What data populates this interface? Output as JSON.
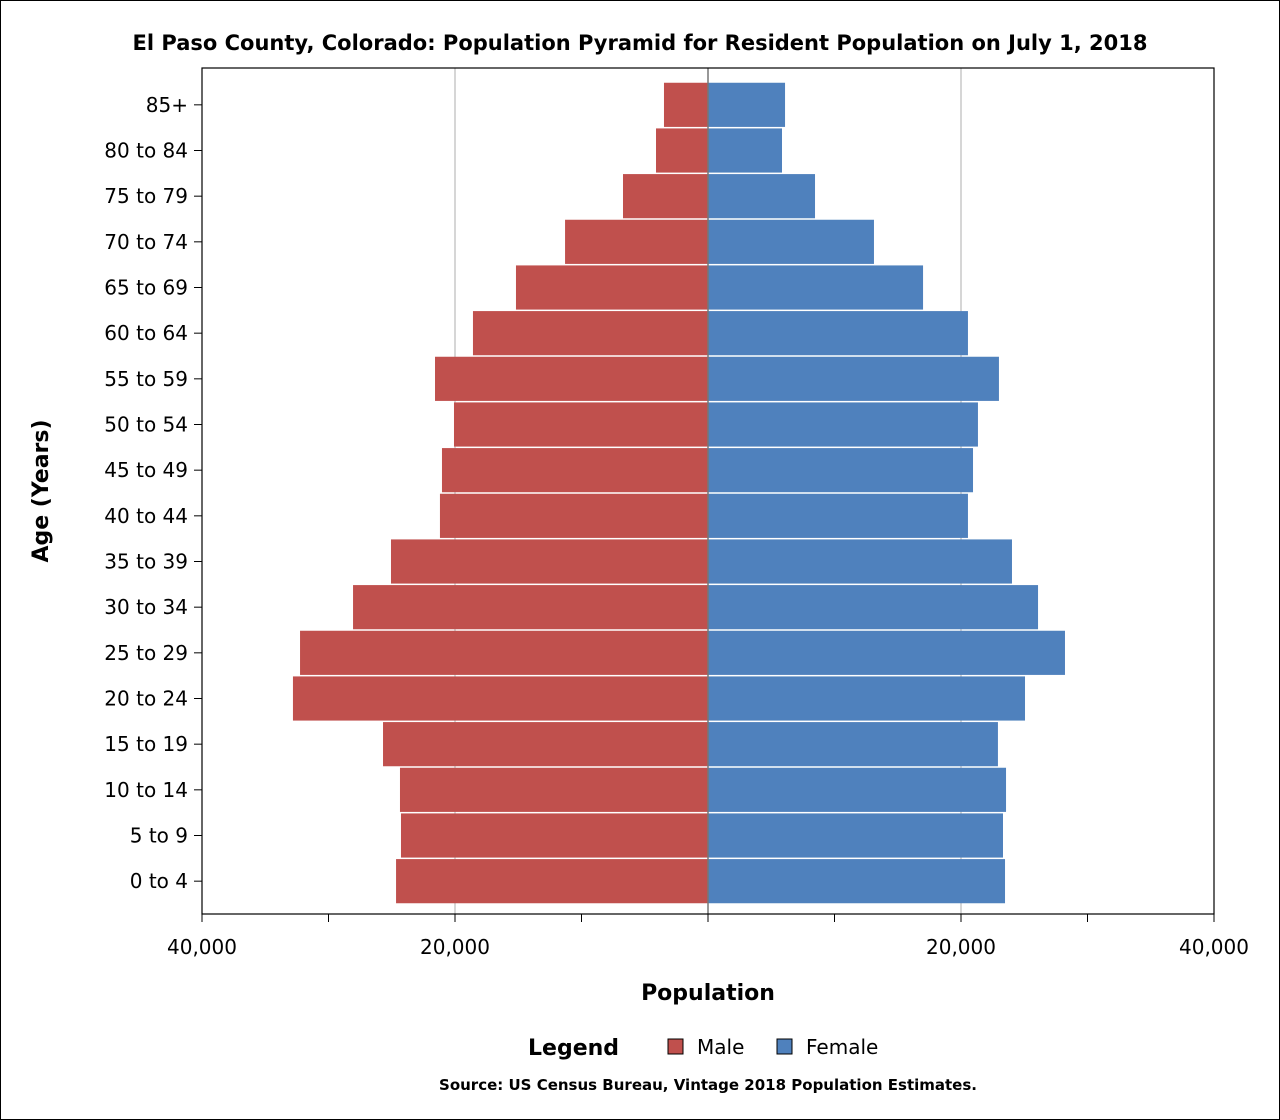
{
  "chart_data": {
    "type": "bar",
    "orientation": "horizontal-pyramid",
    "title": "El Paso County, Colorado: Population Pyramid for Resident Population on July 1, 2018",
    "xlabel": "Population",
    "ylabel": "Age (Years)",
    "xlim": [
      -40000,
      40000
    ],
    "xticks": [
      -40000,
      -20000,
      0,
      20000,
      40000
    ],
    "xtick_labels": [
      "40,000",
      "20,000",
      "",
      "20,000",
      "40,000"
    ],
    "grid": "vertical at 20,000",
    "categories": [
      "85+",
      "80 to 84",
      "75 to 79",
      "70 to 74",
      "65 to 69",
      "60 to 64",
      "55 to 59",
      "50 to 54",
      "45 to 49",
      "40 to 44",
      "35 to 39",
      "30 to 34",
      "25 to 29",
      "20 to 24",
      "15 to 19",
      "10 to 14",
      "5 to 9",
      "0 to 4"
    ],
    "series": [
      {
        "name": "Male",
        "color": "#C0504D",
        "side": "left",
        "values": [
          3480,
          4110,
          6720,
          11300,
          15180,
          18580,
          21580,
          20080,
          21030,
          21190,
          25060,
          28060,
          32250,
          32810,
          25690,
          24350,
          24270,
          24660
        ]
      },
      {
        "name": "Female",
        "color": "#4F81BD",
        "side": "right",
        "values": [
          6090,
          5850,
          8460,
          13120,
          17000,
          20550,
          23000,
          21340,
          20950,
          20550,
          24030,
          26090,
          28220,
          25060,
          22920,
          23560,
          23320,
          23480
        ]
      }
    ],
    "legend": {
      "title": "Legend",
      "placement": "bottom"
    },
    "source": "Source: US Census Bureau, Vintage 2018 Population Estimates."
  }
}
